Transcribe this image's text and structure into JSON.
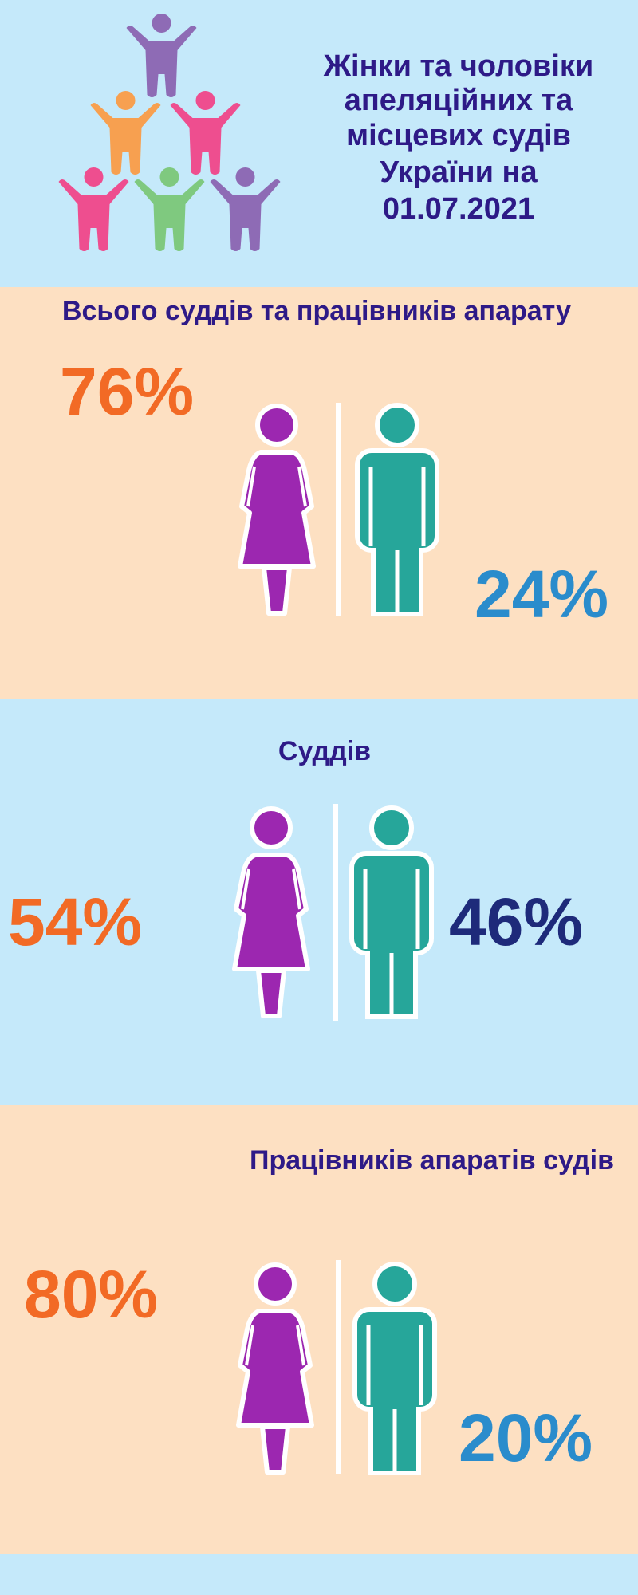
{
  "header": {
    "title_lines": [
      "Жінки та чоловіки",
      "апеляційних та",
      "місцевих судів",
      "України на",
      "01.07.2021"
    ]
  },
  "sections": [
    {
      "title": "Всього суддів та працівників апарату",
      "women": "76%",
      "men": "24%"
    },
    {
      "title": "Суддів",
      "women": "54%",
      "men": "46%"
    },
    {
      "title": "Працівників апаратів судів",
      "women": "80%",
      "men": "20%"
    }
  ]
}
